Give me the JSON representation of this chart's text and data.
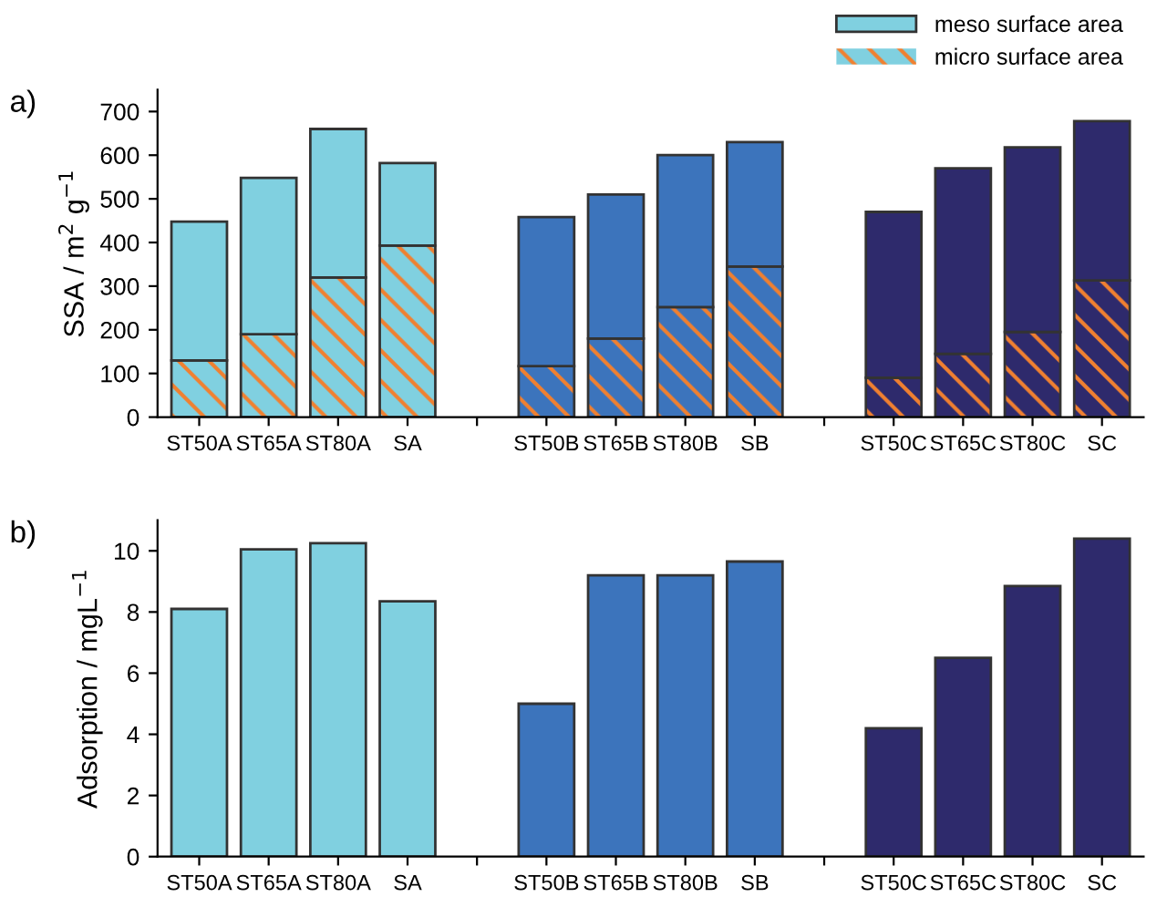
{
  "chart_data": [
    {
      "type": "bar",
      "title": "a)",
      "ylabel": "SSA / m$^{2}$ g$^{−1}$",
      "stacked": true,
      "legend": "top right",
      "categories": [
        "ST50A",
        "ST65A",
        "ST80A",
        "SA",
        null,
        "ST50B",
        "ST65B",
        "ST80B",
        "SB",
        null,
        "ST50C",
        "ST65C",
        "ST80C",
        "SC"
      ],
      "series": [
        {
          "name": "micro surface area",
          "colors": [
            "#80d0e0",
            "#80d0e0",
            "#80d0e0",
            "#80d0e0",
            null,
            "#3c74bc",
            "#3c74bc",
            "#3c74bc",
            "#3c74bc",
            null,
            "#2e2a6c",
            "#2e2a6c",
            "#2e2a6c",
            "#2e2a6c"
          ],
          "values": [
            130,
            190,
            320,
            393,
            null,
            117,
            180,
            252,
            345,
            null,
            90,
            145,
            195,
            313
          ]
        },
        {
          "name": "meso surface area",
          "colors": [
            "#80d0e0",
            "#80d0e0",
            "#80d0e0",
            "#80d0e0",
            null,
            "#3c74bc",
            "#3c74bc",
            "#3c74bc",
            "#3c74bc",
            null,
            "#2e2a6c",
            "#2e2a6c",
            "#2e2a6c",
            "#2e2a6c"
          ],
          "values": [
            318,
            358,
            340,
            189,
            null,
            341,
            330,
            348,
            285,
            null,
            380,
            425,
            423,
            365
          ]
        }
      ],
      "ylim": [
        0,
        750
      ],
      "yticks": [
        0,
        100,
        200,
        300,
        400,
        500,
        600,
        700
      ],
      "grid": false
    },
    {
      "type": "bar",
      "title": "b)",
      "ylabel": "Adsorption / mgL$^{−1}$",
      "categories": [
        "ST50A",
        "ST65A",
        "ST80A",
        "SA",
        null,
        "ST50B",
        "ST65B",
        "ST80B",
        "SB",
        null,
        "ST50C",
        "ST65C",
        "ST80C",
        "SC"
      ],
      "values": [
        8.1,
        10.05,
        10.25,
        8.35,
        null,
        5.0,
        9.2,
        9.2,
        9.65,
        null,
        4.2,
        6.5,
        8.85,
        10.4
      ],
      "colors": [
        "#80d0e0",
        "#80d0e0",
        "#80d0e0",
        "#80d0e0",
        null,
        "#3c74bc",
        "#3c74bc",
        "#3c74bc",
        "#3c74bc",
        null,
        "#2e2a6c",
        "#2e2a6c",
        "#2e2a6c",
        "#2e2a6c"
      ],
      "ylim": [
        0,
        11
      ],
      "yticks": [
        0,
        2,
        4,
        6,
        8,
        10
      ],
      "grid": false
    }
  ]
}
